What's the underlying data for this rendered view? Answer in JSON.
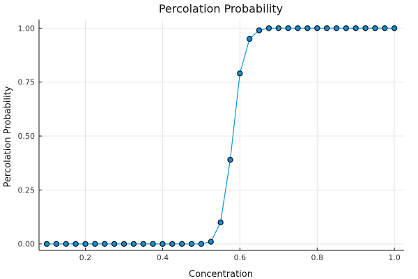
{
  "chart_data": {
    "type": "line",
    "title": "Percolation Probability",
    "xlabel": "Concentration",
    "ylabel": "Percolation Probability",
    "xlim": [
      0.08,
      1.025
    ],
    "ylim": [
      -0.03,
      1.04
    ],
    "xticks": [
      0.2,
      0.4,
      0.6,
      0.8,
      1.0
    ],
    "xtick_labels": [
      "0.2",
      "0.4",
      "0.6",
      "0.8",
      "1.0"
    ],
    "yticks": [
      0.0,
      0.25,
      0.5,
      0.75,
      1.0
    ],
    "ytick_labels": [
      "0.00",
      "0.25",
      "0.50",
      "0.75",
      "1.00"
    ],
    "grid": true,
    "legend": "none",
    "colors": {
      "line": "#0f96d2",
      "marker_fill": "#0a8fd4",
      "marker_edge": "#000000"
    },
    "series": [
      {
        "x": [
          0.1,
          0.125,
          0.15,
          0.175,
          0.2,
          0.225,
          0.25,
          0.275,
          0.3,
          0.325,
          0.35,
          0.375,
          0.4,
          0.425,
          0.45,
          0.475,
          0.5,
          0.525,
          0.55,
          0.575,
          0.6,
          0.625,
          0.65,
          0.675,
          0.7,
          0.725,
          0.75,
          0.775,
          0.8,
          0.825,
          0.85,
          0.875,
          0.9,
          0.925,
          0.95,
          0.975,
          1.0
        ],
        "y": [
          0,
          0,
          0,
          0,
          0,
          0,
          0,
          0,
          0,
          0,
          0,
          0,
          0,
          0,
          0,
          0,
          0,
          0.01,
          0.1,
          0.39,
          0.79,
          0.95,
          0.99,
          1,
          1,
          1,
          1,
          1,
          1,
          1,
          1,
          1,
          1,
          1,
          1,
          1,
          1
        ]
      }
    ]
  }
}
